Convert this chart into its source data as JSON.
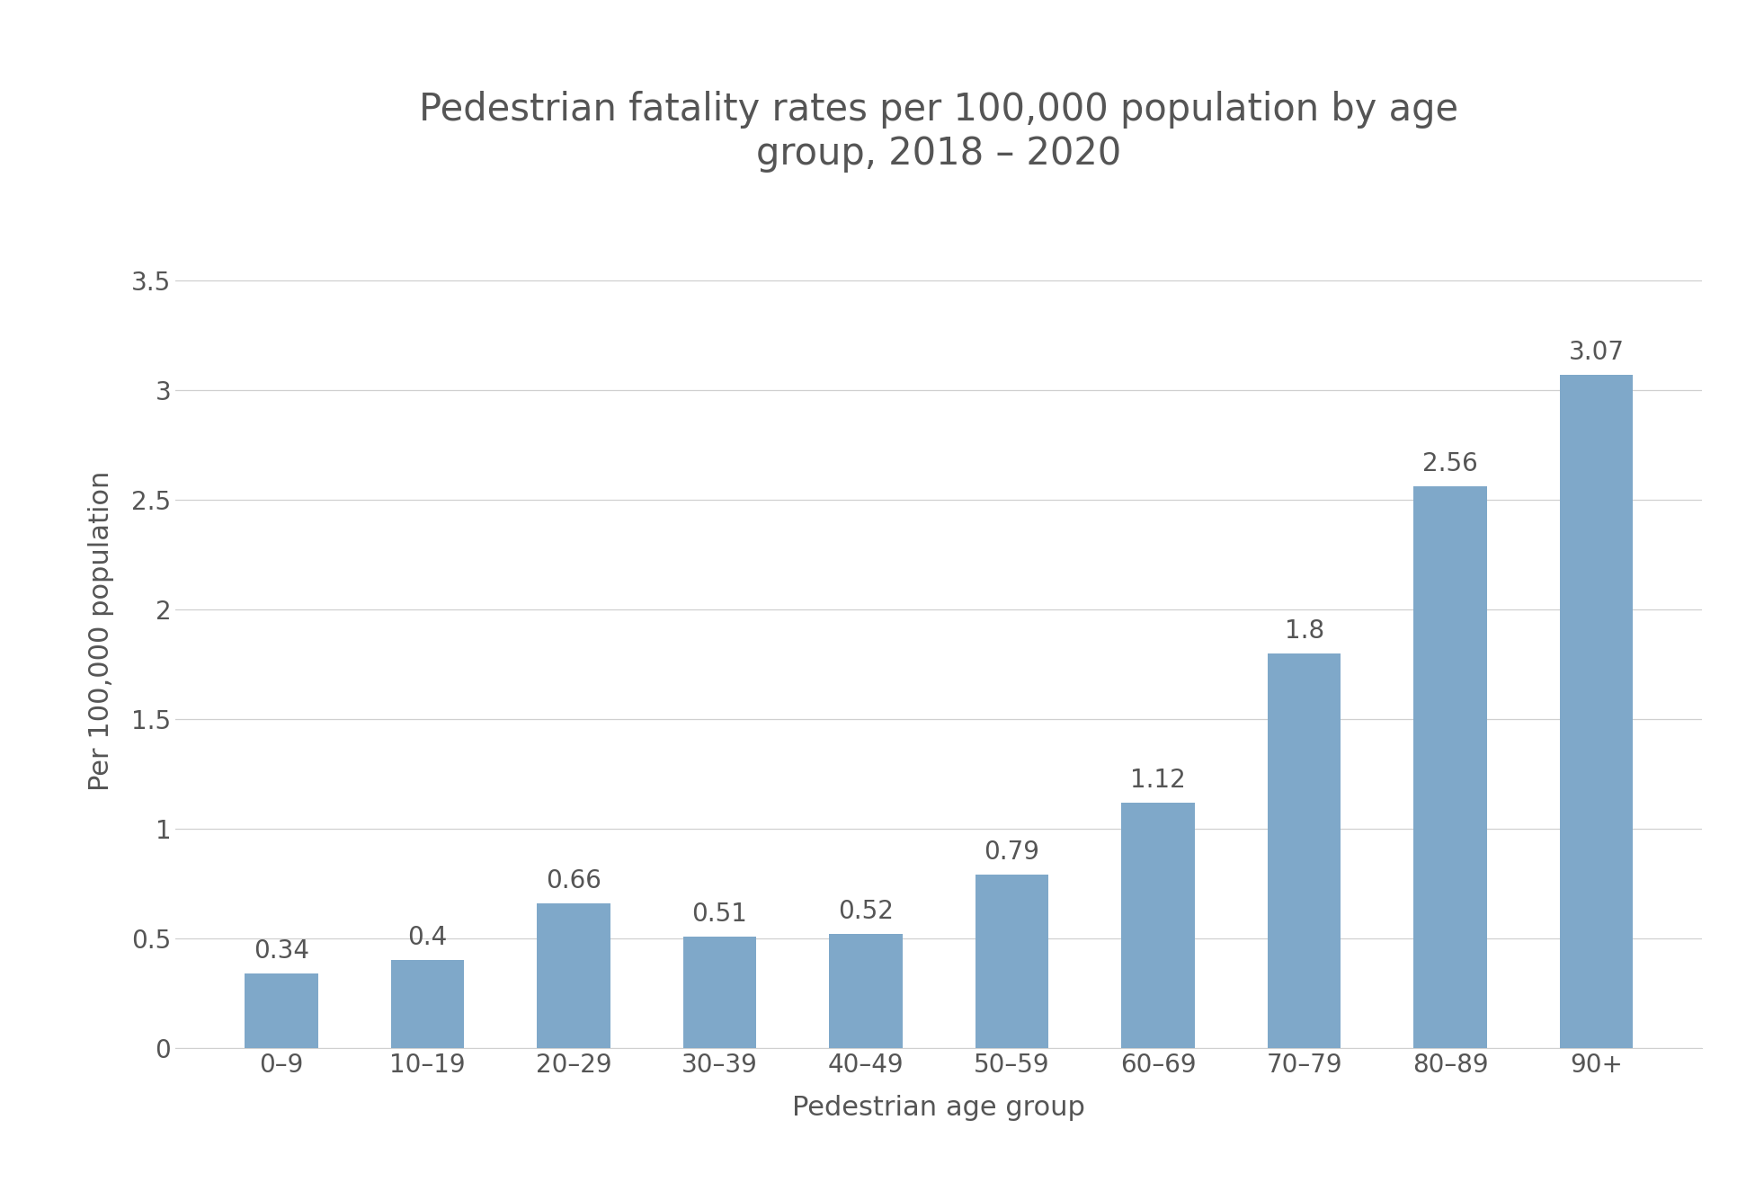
{
  "title": "Pedestrian fatality rates per 100,000 population by age\ngroup, 2018 – 2020",
  "xlabel": "Pedestrian age group",
  "ylabel": "Per 100,000 population",
  "categories": [
    "0–9",
    "10–19",
    "20–29",
    "30–39",
    "40–49",
    "50–59",
    "60–69",
    "70–79",
    "80–89",
    "90+"
  ],
  "values": [
    0.34,
    0.4,
    0.66,
    0.51,
    0.52,
    0.79,
    1.12,
    1.8,
    2.56,
    3.07
  ],
  "bar_color": "#7fa8c9",
  "background_color": "#ffffff",
  "ylim": [
    0,
    3.8
  ],
  "yticks": [
    0,
    0.5,
    1,
    1.5,
    2,
    2.5,
    3,
    3.5
  ],
  "ytick_labels": [
    "0",
    "0.5",
    "1",
    "1.5",
    "2",
    "2.5",
    "3",
    "3.5"
  ],
  "title_fontsize": 30,
  "axis_label_fontsize": 22,
  "tick_fontsize": 20,
  "value_label_fontsize": 20,
  "grid_color": "#d0d0d0",
  "title_color": "#555555",
  "axis_label_color": "#555555",
  "tick_color": "#555555",
  "bar_width": 0.5
}
